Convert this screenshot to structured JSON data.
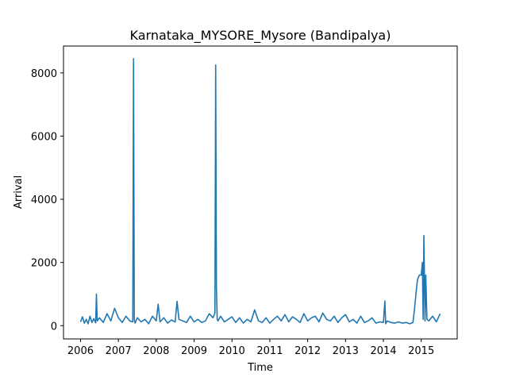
{
  "chart_data": {
    "type": "line",
    "title": "Karnataka_MYSORE_Mysore (Bandipalya)",
    "xlabel": "Time",
    "ylabel": "Arrival",
    "xlim": [
      2005.55,
      2015.95
    ],
    "ylim": [
      -420,
      8850
    ],
    "xticks": [
      2006,
      2007,
      2008,
      2009,
      2010,
      2011,
      2012,
      2013,
      2014,
      2015
    ],
    "xtick_labels": [
      "2006",
      "2007",
      "2008",
      "2009",
      "2010",
      "2011",
      "2012",
      "2013",
      "2014",
      "2015"
    ],
    "yticks": [
      0,
      2000,
      4000,
      6000,
      8000
    ],
    "ytick_labels": [
      "0",
      "2000",
      "4000",
      "6000",
      "8000"
    ],
    "grid": false,
    "line_color": "#1f77b4",
    "series": [
      {
        "x": [
          2006.0,
          2006.05,
          2006.1,
          2006.15,
          2006.2,
          2006.25,
          2006.3,
          2006.35,
          2006.4,
          2006.42,
          2006.44,
          2006.5,
          2006.6,
          2006.7,
          2006.8,
          2006.9,
          2007.0,
          2007.1,
          2007.2,
          2007.3,
          2007.38,
          2007.4,
          2007.42,
          2007.44,
          2007.5,
          2007.6,
          2007.7,
          2007.8,
          2007.9,
          2008.0,
          2008.05,
          2008.1,
          2008.2,
          2008.3,
          2008.4,
          2008.5,
          2008.55,
          2008.6,
          2008.7,
          2008.8,
          2008.9,
          2009.0,
          2009.1,
          2009.2,
          2009.3,
          2009.4,
          2009.5,
          2009.55,
          2009.57,
          2009.59,
          2009.61,
          2009.63,
          2009.7,
          2009.8,
          2009.9,
          2010.0,
          2010.1,
          2010.2,
          2010.3,
          2010.4,
          2010.5,
          2010.6,
          2010.7,
          2010.8,
          2010.9,
          2011.0,
          2011.1,
          2011.2,
          2011.3,
          2011.4,
          2011.5,
          2011.6,
          2011.7,
          2011.8,
          2011.9,
          2012.0,
          2012.1,
          2012.2,
          2012.3,
          2012.4,
          2012.5,
          2012.6,
          2012.7,
          2012.8,
          2012.9,
          2013.0,
          2013.1,
          2013.2,
          2013.3,
          2013.4,
          2013.5,
          2013.6,
          2013.7,
          2013.8,
          2013.9,
          2014.0,
          2014.04,
          2014.06,
          2014.1,
          2014.2,
          2014.3,
          2014.4,
          2014.5,
          2014.6,
          2014.7,
          2014.78,
          2014.82,
          2014.86,
          2014.9,
          2014.95,
          2015.0,
          2015.03,
          2015.05,
          2015.07,
          2015.1,
          2015.12,
          2015.15,
          2015.2,
          2015.3,
          2015.4,
          2015.5
        ],
        "y": [
          120,
          280,
          80,
          200,
          60,
          300,
          100,
          220,
          90,
          1000,
          150,
          250,
          100,
          380,
          150,
          550,
          250,
          100,
          300,
          150,
          120,
          8450,
          200,
          80,
          250,
          120,
          200,
          60,
          300,
          150,
          680,
          120,
          250,
          80,
          180,
          120,
          770,
          200,
          150,
          100,
          300,
          120,
          200,
          100,
          150,
          380,
          250,
          400,
          8250,
          1200,
          200,
          150,
          300,
          120,
          200,
          280,
          100,
          250,
          80,
          200,
          120,
          500,
          150,
          100,
          250,
          80,
          200,
          300,
          150,
          350,
          120,
          280,
          200,
          100,
          380,
          150,
          250,
          300,
          120,
          400,
          200,
          150,
          300,
          100,
          250,
          350,
          120,
          200,
          80,
          300,
          100,
          150,
          250,
          80,
          120,
          100,
          780,
          60,
          150,
          100,
          80,
          120,
          80,
          100,
          60,
          100,
          500,
          1000,
          1450,
          1600,
          1600,
          2000,
          200,
          2850,
          150,
          1600,
          200,
          150,
          300,
          120,
          380
        ]
      }
    ]
  }
}
